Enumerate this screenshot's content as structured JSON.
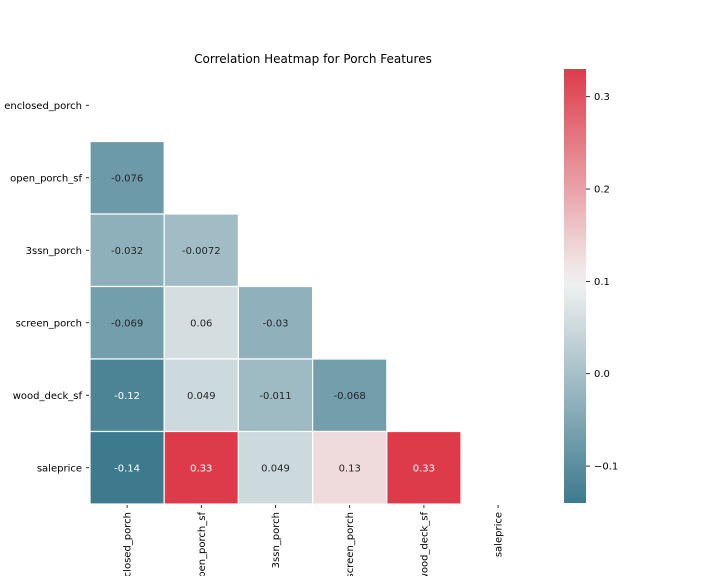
{
  "chart_data": {
    "type": "heatmap",
    "title": "Correlation Heatmap for Porch Features",
    "labels": [
      "enclosed_porch",
      "open_porch_sf",
      "3ssn_porch",
      "screen_porch",
      "wood_deck_sf",
      "saleprice"
    ],
    "mask": "upper-triangle",
    "cells": [
      {
        "row": 1,
        "col": 0,
        "value": -0.076,
        "label": "-0.076"
      },
      {
        "row": 2,
        "col": 0,
        "value": -0.032,
        "label": "-0.032"
      },
      {
        "row": 2,
        "col": 1,
        "value": -0.0072,
        "label": "-0.0072"
      },
      {
        "row": 3,
        "col": 0,
        "value": -0.069,
        "label": "-0.069"
      },
      {
        "row": 3,
        "col": 1,
        "value": 0.06,
        "label": "0.06"
      },
      {
        "row": 3,
        "col": 2,
        "value": -0.03,
        "label": "-0.03"
      },
      {
        "row": 4,
        "col": 0,
        "value": -0.12,
        "label": "-0.12"
      },
      {
        "row": 4,
        "col": 1,
        "value": 0.049,
        "label": "0.049"
      },
      {
        "row": 4,
        "col": 2,
        "value": -0.011,
        "label": "-0.011"
      },
      {
        "row": 4,
        "col": 3,
        "value": -0.068,
        "label": "-0.068"
      },
      {
        "row": 5,
        "col": 0,
        "value": -0.14,
        "label": "-0.14"
      },
      {
        "row": 5,
        "col": 1,
        "value": 0.33,
        "label": "0.33"
      },
      {
        "row": 5,
        "col": 2,
        "value": 0.049,
        "label": "0.049"
      },
      {
        "row": 5,
        "col": 3,
        "value": 0.13,
        "label": "0.13"
      },
      {
        "row": 5,
        "col": 4,
        "value": 0.33,
        "label": "0.33"
      }
    ],
    "colorbar": {
      "min": -0.14,
      "center": 0.1,
      "max": 0.33,
      "ticks": [
        -0.1,
        0.0,
        0.1,
        0.2,
        0.3
      ],
      "tick_labels": [
        "−0.1",
        "0.0",
        "0.1",
        "0.2",
        "0.3"
      ],
      "low_color": "#3d7a8e",
      "mid_color": "#f2f2f2",
      "high_color": "#de3b4a"
    }
  }
}
